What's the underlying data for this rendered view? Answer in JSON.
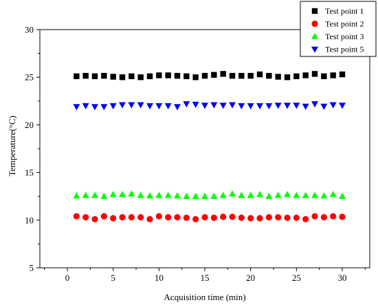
{
  "chart_data": {
    "type": "scatter",
    "title": "",
    "xlabel": "Acquisition time (min)",
    "ylabel": "Temperature(°C)",
    "xlim": [
      -3,
      33
    ],
    "ylim": [
      5,
      30
    ],
    "xticks": [
      0,
      5,
      10,
      15,
      20,
      25,
      30
    ],
    "yticks": [
      5,
      10,
      15,
      20,
      25,
      30
    ],
    "grid": false,
    "legend_position": "top-right",
    "x": [
      1,
      2,
      3,
      4,
      5,
      6,
      7,
      8,
      9,
      10,
      11,
      12,
      13,
      14,
      15,
      16,
      17,
      18,
      19,
      20,
      21,
      22,
      23,
      24,
      25,
      26,
      27,
      28,
      29,
      30
    ],
    "series": [
      {
        "name": "Test point 1",
        "marker": "square",
        "color": "#000000",
        "values": [
          25.1,
          25.15,
          25.1,
          25.15,
          25.05,
          25.0,
          25.1,
          25.0,
          25.1,
          25.2,
          25.2,
          25.15,
          25.1,
          25.0,
          25.15,
          25.25,
          25.35,
          25.15,
          25.15,
          25.15,
          25.3,
          25.15,
          25.05,
          25.0,
          25.1,
          25.2,
          25.35,
          25.1,
          25.2,
          25.3
        ]
      },
      {
        "name": "Test point 2",
        "marker": "circle",
        "color": "#ff0000",
        "values": [
          10.4,
          10.3,
          10.1,
          10.4,
          10.2,
          10.3,
          10.3,
          10.3,
          10.1,
          10.4,
          10.3,
          10.3,
          10.25,
          10.1,
          10.3,
          10.25,
          10.35,
          10.35,
          10.25,
          10.2,
          10.2,
          10.3,
          10.3,
          10.25,
          10.25,
          10.1,
          10.4,
          10.3,
          10.4,
          10.35
        ]
      },
      {
        "name": "Test point 3",
        "marker": "triangle-up",
        "color": "#00ff00",
        "values": [
          12.55,
          12.6,
          12.6,
          12.5,
          12.7,
          12.7,
          12.75,
          12.6,
          12.55,
          12.6,
          12.6,
          12.55,
          12.5,
          12.5,
          12.5,
          12.5,
          12.6,
          12.75,
          12.6,
          12.6,
          12.7,
          12.5,
          12.6,
          12.7,
          12.6,
          12.6,
          12.6,
          12.55,
          12.7,
          12.5
        ]
      },
      {
        "name": "Test point 5",
        "marker": "triangle-down",
        "color": "#0000ff",
        "values": [
          21.9,
          22.0,
          21.9,
          21.9,
          22.0,
          22.1,
          22.1,
          22.1,
          22.0,
          22.0,
          22.0,
          21.9,
          22.2,
          22.15,
          22.05,
          22.1,
          22.05,
          22.1,
          22.0,
          22.0,
          22.0,
          22.0,
          22.05,
          22.05,
          22.05,
          21.95,
          22.2,
          21.95,
          22.1,
          22.05
        ]
      }
    ]
  }
}
